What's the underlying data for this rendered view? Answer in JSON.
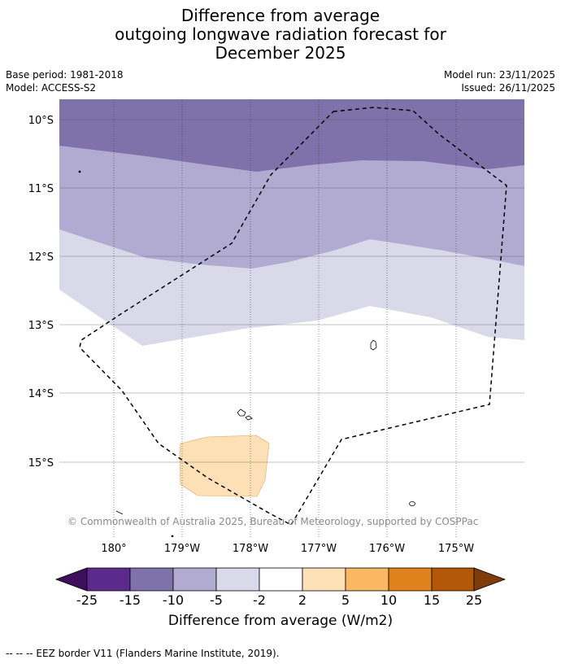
{
  "title": {
    "line1": "Difference from average",
    "line2": "outgoing longwave radiation forecast for",
    "line3": "December 2025"
  },
  "meta": {
    "base_period": "Base period: 1981-2018",
    "model": "Model: ACCESS-S2",
    "model_run": "Model run: 23/11/2025",
    "issued": "Issued: 26/11/2025"
  },
  "map": {
    "lat_labels": [
      "10°S",
      "11°S",
      "12°S",
      "13°S",
      "14°S",
      "15°S"
    ],
    "lon_labels": [
      "180°",
      "179°W",
      "178°W",
      "177°W",
      "176°W",
      "175°W"
    ],
    "copyright": "© Commonwealth of Australia 2025, Bureau of Meteorology, supported by COSPPac"
  },
  "colorbar": {
    "ticks": [
      "-25",
      "-15",
      "-10",
      "-5",
      "-2",
      "2",
      "5",
      "10",
      "15",
      "25"
    ],
    "colors": [
      "#3f0f5e",
      "#5b2a8c",
      "#7f72aa",
      "#b1aad1",
      "#d9d9ea",
      "#ffffff",
      "#fde0b6",
      "#fbb862",
      "#e0821b",
      "#b35807",
      "#7f3b08"
    ],
    "label": "Difference from average (W/m2)"
  },
  "footer": "--  --  -- EEZ border V11 (Flanders Marine Institute, 2019)."
}
